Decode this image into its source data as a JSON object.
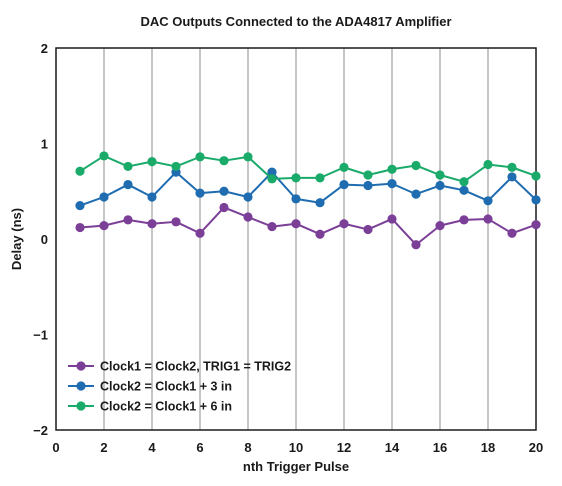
{
  "chart_data": {
    "type": "line",
    "title": "DAC Outputs Connected to the ADA4817 Amplifier",
    "xlabel": "nth Trigger Pulse",
    "ylabel": "Delay (ns)",
    "xlim": [
      0,
      20
    ],
    "ylim": [
      -2,
      2
    ],
    "xticks": [
      0,
      2,
      4,
      6,
      8,
      10,
      12,
      14,
      16,
      18,
      20
    ],
    "yticks": [
      2,
      1,
      0,
      -1,
      -2
    ],
    "ytick_labels": [
      "2",
      "1",
      "0",
      "−1",
      "−2"
    ],
    "grid": "vertical",
    "legend_position": "bottom-left",
    "x": [
      1,
      2,
      3,
      4,
      5,
      6,
      7,
      8,
      9,
      10,
      11,
      12,
      13,
      14,
      15,
      16,
      17,
      18,
      19,
      20
    ],
    "series": [
      {
        "name": "Clock1 = Clock2, TRIG1 = TRIG2",
        "color": "#7b3f98",
        "values": [
          0.12,
          0.14,
          0.2,
          0.16,
          0.18,
          0.06,
          0.33,
          0.23,
          0.13,
          0.16,
          0.05,
          0.16,
          0.1,
          0.21,
          -0.06,
          0.14,
          0.2,
          0.21,
          0.06,
          0.15
        ]
      },
      {
        "name": "Clock2 = Clock1 + 3 in",
        "color": "#1f6db0",
        "values": [
          0.35,
          0.44,
          0.57,
          0.44,
          0.7,
          0.48,
          0.5,
          0.44,
          0.7,
          0.42,
          0.38,
          0.57,
          0.56,
          0.58,
          0.47,
          0.56,
          0.51,
          0.4,
          0.65,
          0.41
        ]
      },
      {
        "name": "Clock2 = Clock1 + 6 in",
        "color": "#1aaa6a",
        "values": [
          0.71,
          0.87,
          0.76,
          0.81,
          0.76,
          0.86,
          0.82,
          0.86,
          0.63,
          0.64,
          0.64,
          0.75,
          0.67,
          0.73,
          0.77,
          0.67,
          0.6,
          0.78,
          0.75,
          0.66
        ]
      }
    ]
  }
}
